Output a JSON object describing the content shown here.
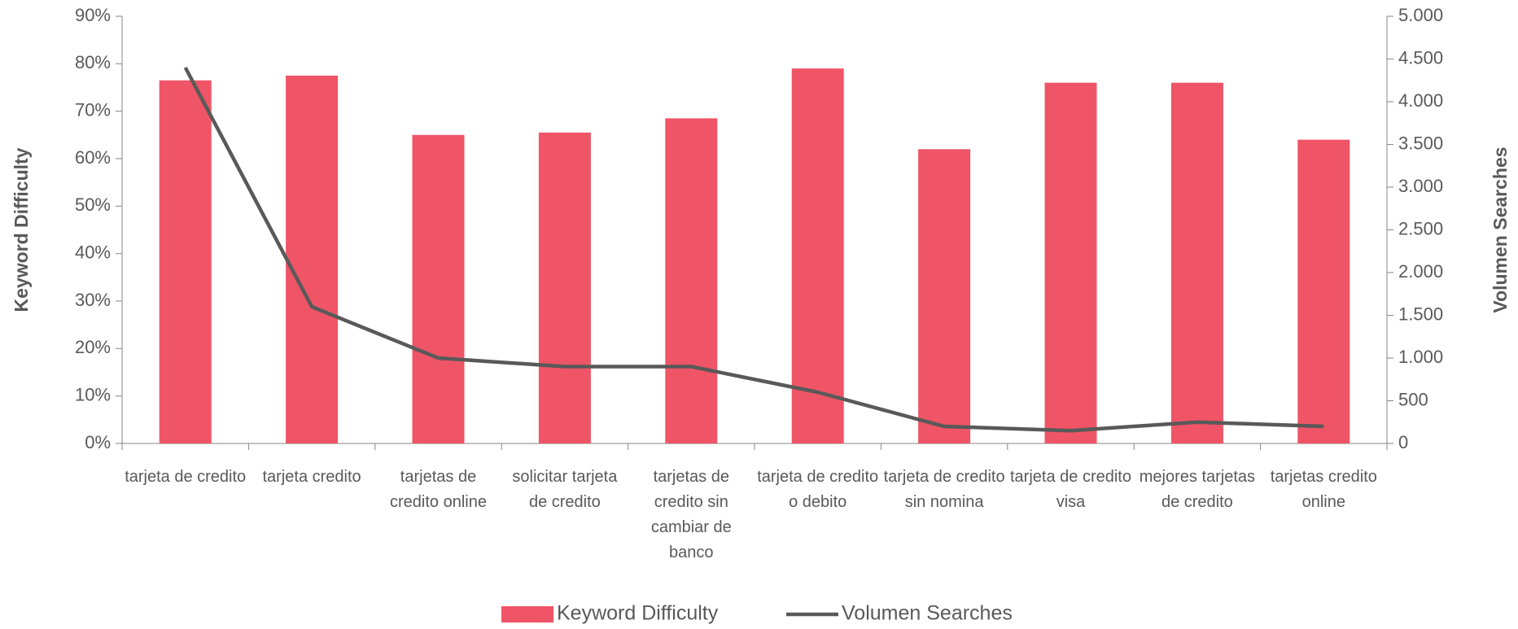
{
  "chart_data": {
    "type": "bar",
    "categories": [
      "tarjeta de credito",
      "tarjeta credito",
      "tarjetas de credito online",
      "solicitar tarjeta de credito",
      "tarjetas de credito sin cambiar de banco",
      "tarjeta de credito o debito",
      "tarjeta de credito sin nomina",
      "tarjeta de credito visa",
      "mejores tarjetas de credito",
      "tarjetas credito online"
    ],
    "series": [
      {
        "name": "Keyword Difficulty",
        "type": "bar",
        "color": "#ef5566",
        "values": [
          76.5,
          77.5,
          65,
          65.5,
          68.5,
          79,
          62,
          76,
          76,
          64
        ]
      },
      {
        "name": "Volumen Searches",
        "type": "line",
        "axis": "y2",
        "color": "#595959",
        "values": [
          4400,
          1600,
          1000,
          900,
          900,
          600,
          200,
          150,
          250,
          200
        ]
      }
    ],
    "y_label": "Keyword Difficulty",
    "y2_label": "Volumen Searches",
    "ylim": [
      0,
      90
    ],
    "yticks": [
      {
        "value": 0,
        "label": "0%"
      },
      {
        "value": 10,
        "label": "10%"
      },
      {
        "value": 20,
        "label": "20%"
      },
      {
        "value": 30,
        "label": "30%"
      },
      {
        "value": 40,
        "label": "40%"
      },
      {
        "value": 50,
        "label": "50%"
      },
      {
        "value": 60,
        "label": "60%"
      },
      {
        "value": 70,
        "label": "70%"
      },
      {
        "value": 80,
        "label": "80%"
      },
      {
        "value": 90,
        "label": "90%"
      }
    ],
    "y2lim": [
      0,
      5000
    ],
    "y2ticks": [
      0,
      500,
      {
        "value": 1000,
        "label": "1.000"
      },
      {
        "value": 1500,
        "label": "1.500"
      },
      {
        "value": 2000,
        "label": "2.000"
      },
      {
        "value": 2500,
        "label": "2.500"
      },
      {
        "value": 3000,
        "label": "3.000"
      },
      {
        "value": 3500,
        "label": "3.500"
      },
      {
        "value": 4000,
        "label": "4.000"
      },
      {
        "value": 4500,
        "label": "4.500"
      },
      {
        "value": 5000,
        "label": "5.000"
      }
    ],
    "legend": "bottom"
  }
}
